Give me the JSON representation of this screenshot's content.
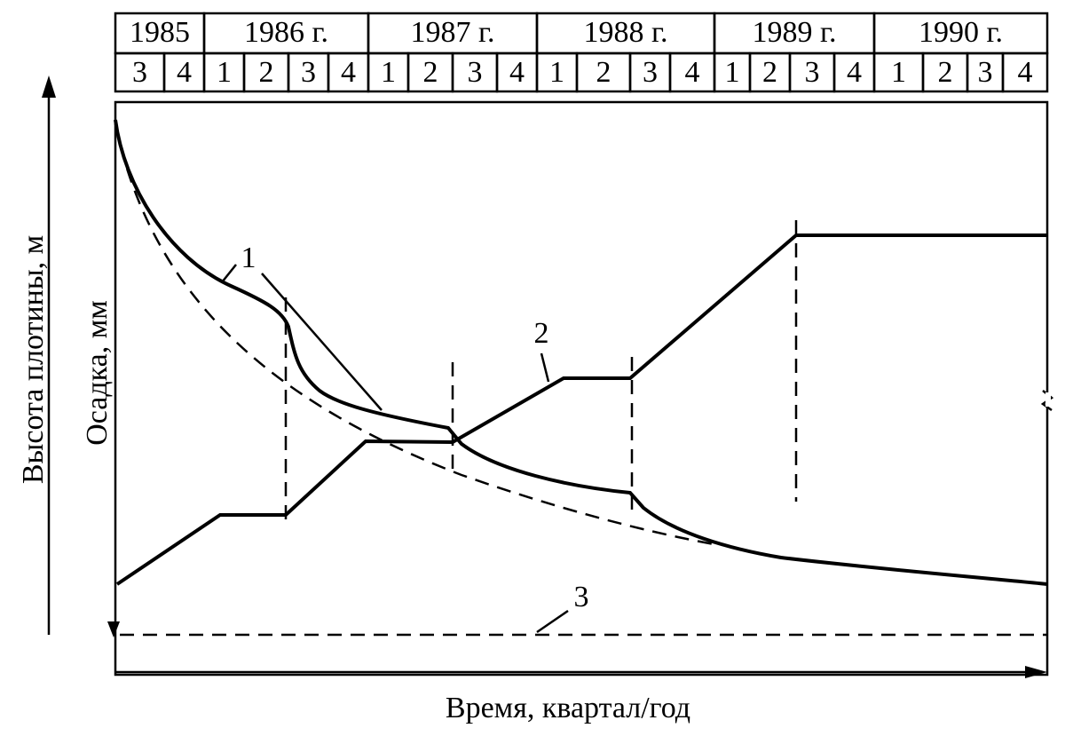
{
  "header": {
    "years": [
      "1985",
      "1986 г.",
      "1987 г.",
      "1988 г.",
      "1989 г.",
      "1990 г."
    ],
    "quarters": [
      "3",
      "4",
      "1",
      "2",
      "3",
      "4",
      "1",
      "2",
      "3",
      "4",
      "1",
      "2",
      "3",
      "4",
      "1",
      "2",
      "3",
      "4",
      "1",
      "2",
      "3",
      "4"
    ]
  },
  "axes": {
    "left": "Высота плотины, м",
    "inner": "Осадка, мм",
    "bottom": "Время, квартал/год"
  },
  "curves": {
    "label1": "1",
    "label2": "2",
    "label3": "3"
  }
}
